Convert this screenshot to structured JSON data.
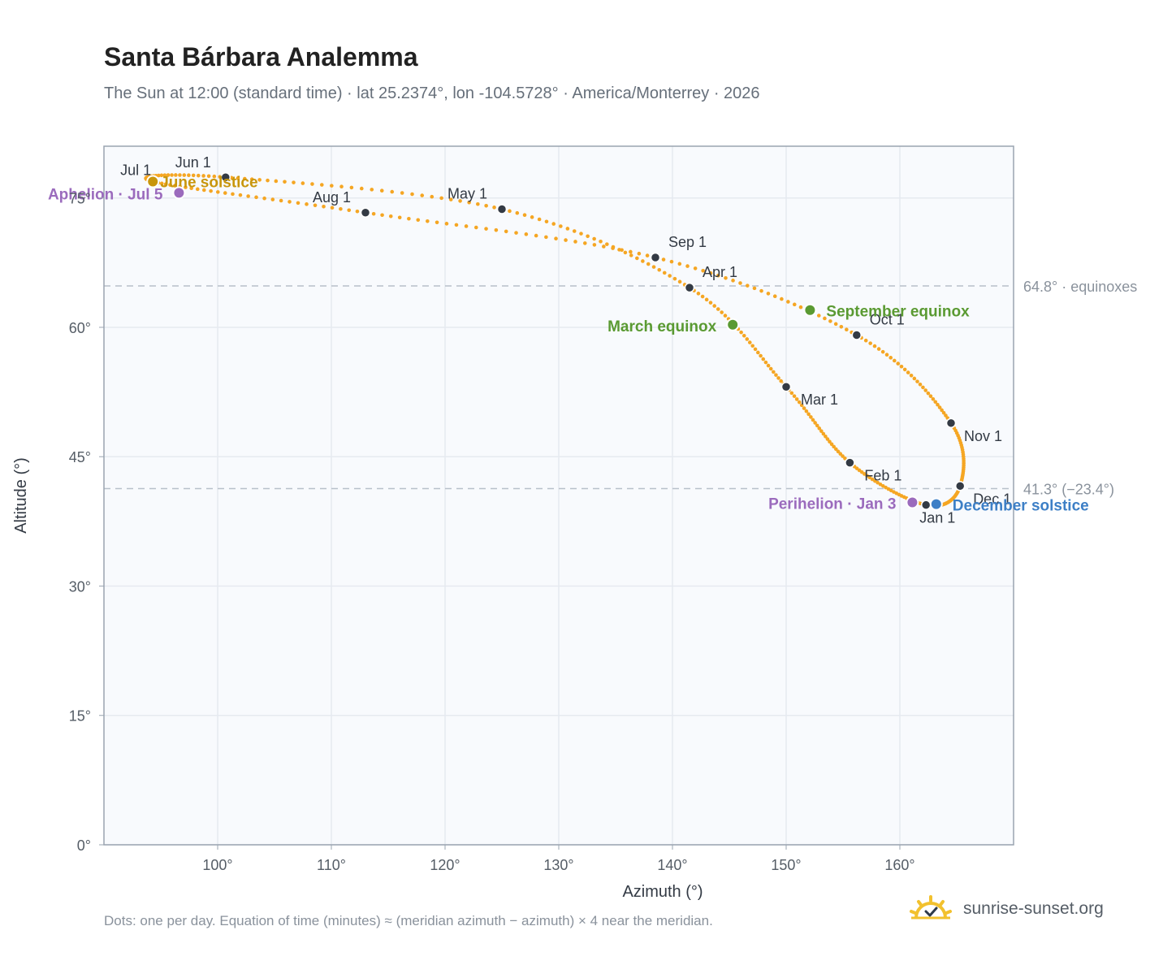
{
  "header": {
    "title": "Santa Bárbara Analemma",
    "subtitle": "The Sun at 12:00 (standard time) · lat 25.2374°, lon -104.5728° · America/Monterrey · 2026"
  },
  "footer": {
    "note": "Dots: one per day. Equation of time (minutes) ≈ (meridian azimuth − azimuth) × 4 near the meridian.",
    "brand": "sunrise-sunset.org"
  },
  "colors": {
    "curve": "#f5a623",
    "month_dot": "#333a44",
    "june_solstice": "#c8960c",
    "december_solstice": "#3d7fc6",
    "equinox": "#5a9a32",
    "apsis": "#9b6bbd",
    "reference_line": "#b8c0ca",
    "plot_bg": "#f8fafd",
    "grid": "#e6eaf0"
  },
  "chart_data": {
    "type": "scatter",
    "xlabel": "Azimuth (°)",
    "ylabel": "Altitude (°)",
    "xlim": [
      90,
      170
    ],
    "ylim": [
      0,
      81
    ],
    "x_ticks": [
      100,
      110,
      120,
      130,
      140,
      150,
      160
    ],
    "x_tick_labels": [
      "100°",
      "110°",
      "120°",
      "130°",
      "140°",
      "150°",
      "160°"
    ],
    "y_ticks": [
      0,
      15,
      30,
      45,
      60,
      75
    ],
    "y_tick_labels": [
      "0°",
      "15°",
      "30°",
      "45°",
      "60°",
      "75°"
    ],
    "grid": true,
    "reference_lines": [
      {
        "y": 64.8,
        "label": "64.8° · equinoxes"
      },
      {
        "y": 41.3,
        "label": "41.3° (−23.4°)"
      }
    ],
    "month_markers": [
      {
        "label": "Jan 1",
        "az": 162.3,
        "alt": 39.4
      },
      {
        "label": "Feb 1",
        "az": 155.6,
        "alt": 44.3
      },
      {
        "label": "Mar 1",
        "az": 150.0,
        "alt": 53.1
      },
      {
        "label": "Apr 1",
        "az": 141.5,
        "alt": 64.6
      },
      {
        "label": "May 1",
        "az": 125.0,
        "alt": 73.7
      },
      {
        "label": "Jun 1",
        "az": 100.7,
        "alt": 77.4
      },
      {
        "label": "Jul 1",
        "az": 94.3,
        "alt": 76.9
      },
      {
        "label": "Aug 1",
        "az": 113.0,
        "alt": 73.3
      },
      {
        "label": "Sep 1",
        "az": 138.5,
        "alt": 68.1
      },
      {
        "label": "Oct 1",
        "az": 156.2,
        "alt": 59.1
      },
      {
        "label": "Nov 1",
        "az": 164.5,
        "alt": 48.9
      },
      {
        "label": "Dec 1",
        "az": 165.3,
        "alt": 41.6
      }
    ],
    "events": [
      {
        "label": "June solstice",
        "az": 94.3,
        "alt": 76.9,
        "color_key": "june_solstice"
      },
      {
        "label": "December solstice",
        "az": 163.2,
        "alt": 39.5,
        "color_key": "december_solstice"
      },
      {
        "label": "March equinox",
        "az": 145.3,
        "alt": 60.3,
        "color_key": "equinox"
      },
      {
        "label": "September equinox",
        "az": 152.1,
        "alt": 62.0,
        "color_key": "equinox"
      },
      {
        "label": "Aphelion · Jul 5",
        "az": 96.6,
        "alt": 75.6,
        "color_key": "apsis"
      },
      {
        "label": "Perihelion · Jan 3",
        "az": 161.1,
        "alt": 39.7,
        "color_key": "apsis"
      }
    ]
  }
}
